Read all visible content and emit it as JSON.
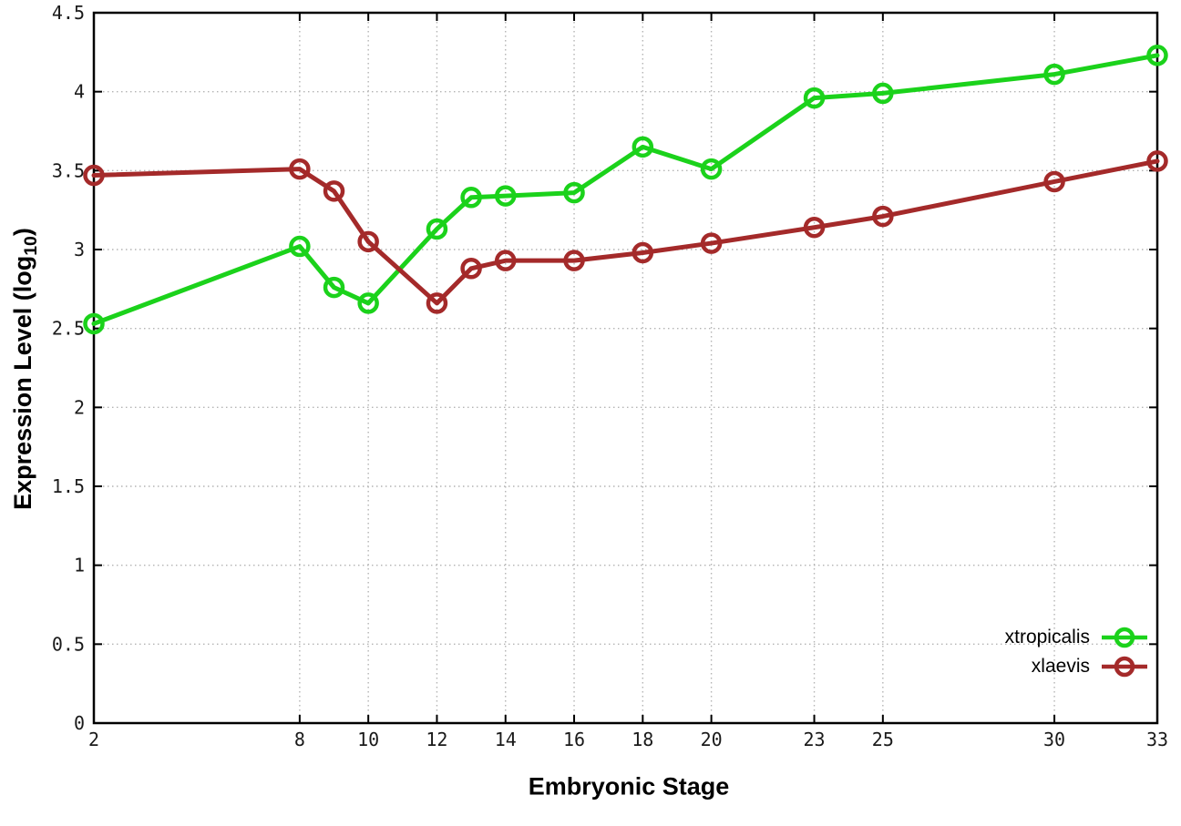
{
  "chart_data": {
    "type": "line",
    "title": "",
    "xlabel": "Embryonic Stage",
    "ylabel": "Expression Level (log10)",
    "ylabel_parts": {
      "main": "Expression Level (log",
      "sub": "10",
      "close": ")"
    },
    "xlim": [
      2,
      33
    ],
    "ylim": [
      0,
      4.5
    ],
    "x": [
      2,
      8,
      9,
      10,
      12,
      13,
      14,
      16,
      18,
      20,
      23,
      25,
      30,
      33
    ],
    "x_ticks": [
      2,
      8,
      10,
      12,
      14,
      16,
      18,
      20,
      23,
      25,
      30,
      33
    ],
    "x_tick_labels": [
      "2",
      "8",
      "10",
      "12",
      "14",
      "16",
      "18",
      "20",
      "23",
      "25",
      "30",
      "33"
    ],
    "y_ticks": [
      0,
      0.5,
      1,
      1.5,
      2,
      2.5,
      3,
      3.5,
      4,
      4.5
    ],
    "y_tick_labels": [
      "0",
      "0.5",
      "1",
      "1.5",
      "2",
      "2.5",
      "3",
      "3.5",
      "4",
      "4.5"
    ],
    "grid": true,
    "grid_style": "dotted",
    "legend_position": "bottom-right",
    "marker": "open-circle",
    "series": [
      {
        "name": "xtropicalis",
        "color": "#1bd21b",
        "values": [
          2.53,
          3.02,
          2.76,
          2.66,
          3.13,
          3.33,
          3.34,
          3.36,
          3.65,
          3.51,
          3.96,
          3.99,
          4.11,
          4.23
        ]
      },
      {
        "name": "xlaevis",
        "color": "#a42a2a",
        "values": [
          3.47,
          3.51,
          3.37,
          3.05,
          2.66,
          2.88,
          2.93,
          2.93,
          2.98,
          3.04,
          3.14,
          3.21,
          3.43,
          3.56
        ]
      }
    ]
  },
  "style": {
    "background_color": "#ffffff",
    "axis_color": "#000000",
    "grid_color": "#b4b4b4",
    "tick_label_color": "#1a1a1a"
  }
}
